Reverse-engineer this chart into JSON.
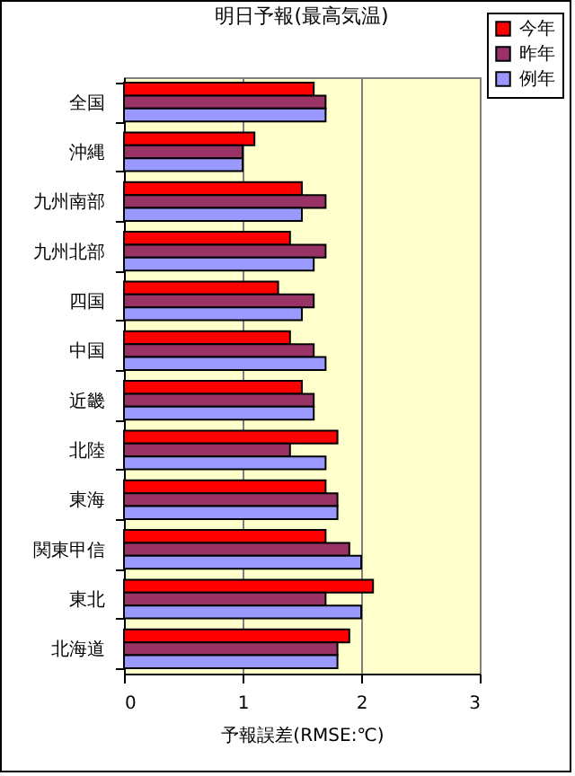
{
  "chart_data": {
    "type": "bar",
    "orientation": "horizontal",
    "title": "明日予報(最高気温)",
    "xlabel": "予報誤差(RMSE:℃)",
    "categories": [
      "全国",
      "沖縄",
      "九州南部",
      "九州北部",
      "四国",
      "中国",
      "近畿",
      "北陸",
      "東海",
      "関東甲信",
      "東北",
      "北海道"
    ],
    "series": [
      {
        "name": "今年",
        "color": "#ff0000",
        "values": [
          1.6,
          1.1,
          1.5,
          1.4,
          1.3,
          1.4,
          1.5,
          1.8,
          1.7,
          1.7,
          2.1,
          1.9
        ]
      },
      {
        "name": "昨年",
        "color": "#993366",
        "values": [
          1.7,
          1.0,
          1.7,
          1.7,
          1.6,
          1.6,
          1.6,
          1.4,
          1.8,
          1.9,
          1.7,
          1.8
        ]
      },
      {
        "name": "例年",
        "color": "#9999ff",
        "values": [
          1.7,
          1.0,
          1.5,
          1.6,
          1.5,
          1.7,
          1.6,
          1.7,
          1.8,
          2.0,
          2.0,
          1.8
        ]
      }
    ],
    "xlim": [
      0,
      3
    ],
    "xticks": [
      0,
      1,
      2,
      3
    ],
    "grid": "x",
    "legend": "top right"
  }
}
